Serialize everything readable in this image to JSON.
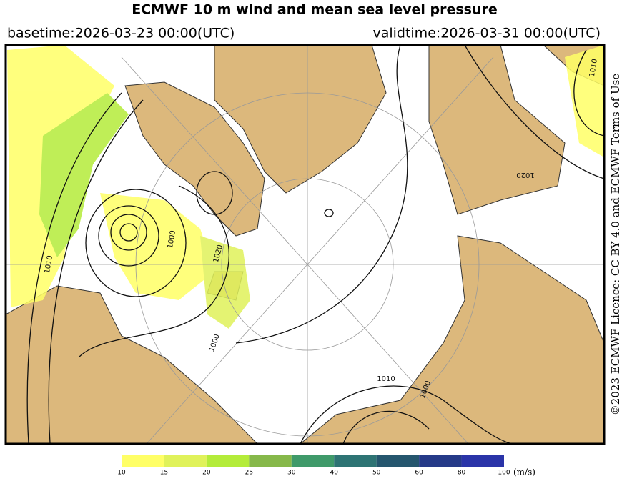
{
  "header": {
    "title": "ECMWF 10 m wind and mean sea level pressure",
    "basetime": "basetime:2026-03-23 00:00(UTC)",
    "validtime": "validtime:2026-03-31 00:00(UTC)"
  },
  "licence": "©2023 ECMWF Licence: CC BY 4.0 and ECMWF Terms of Use",
  "map": {
    "contour_labels": [
      "1010",
      "1000",
      "1020",
      "1000",
      "1010",
      "1020",
      "1000",
      "1010"
    ]
  },
  "legend": {
    "unit": "(m/s)",
    "bounds": [
      10,
      15,
      20,
      25,
      30,
      40,
      50,
      60,
      80,
      100
    ],
    "colors": [
      "#ffff66",
      "#e0f25a",
      "#b4ec3a",
      "#86b84a",
      "#3f9a6a",
      "#2e7474",
      "#25566e",
      "#253a88",
      "#2a34a8"
    ]
  }
}
